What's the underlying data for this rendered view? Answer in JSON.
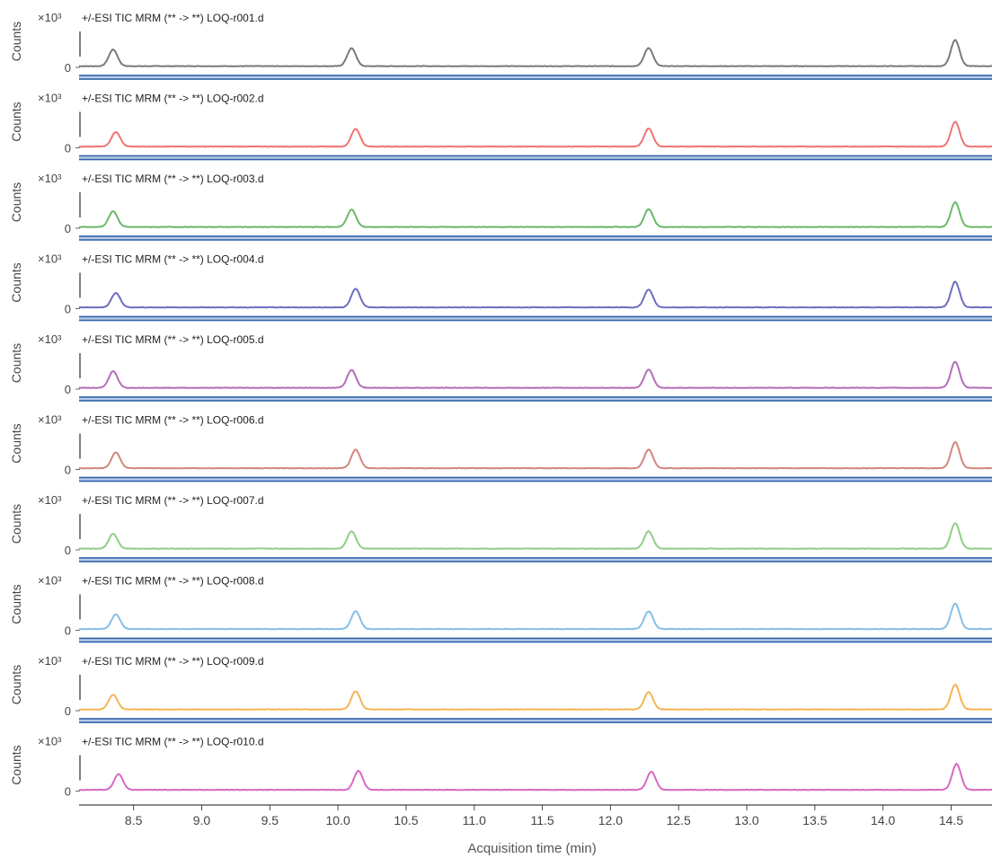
{
  "chart_data": {
    "type": "line",
    "xlabel": "Acquisition time (min)",
    "xlim": [
      8.1,
      14.8
    ],
    "xticks": [
      8.5,
      9.0,
      9.5,
      10.0,
      10.5,
      11.0,
      11.5,
      12.0,
      12.5,
      13.0,
      13.5,
      14.0,
      14.5
    ],
    "ylabel": "Counts",
    "y_multiplier": "×10³",
    "y_tick": "0",
    "ylim": [
      0,
      1
    ],
    "series": [
      {
        "name": "+/-ESI TIC MRM (** -> **) LOQ-r001.d",
        "color": "#7a7a7a",
        "peaks": [
          {
            "x": 8.35,
            "y": 0.4
          },
          {
            "x": 10.1,
            "y": 0.43
          },
          {
            "x": 12.28,
            "y": 0.44
          },
          {
            "x": 14.53,
            "y": 0.63
          }
        ]
      },
      {
        "name": "+/-ESI TIC MRM (** -> **) LOQ-r002.d",
        "color": "#f07373",
        "peaks": [
          {
            "x": 8.37,
            "y": 0.35
          },
          {
            "x": 10.13,
            "y": 0.43
          },
          {
            "x": 12.28,
            "y": 0.44
          },
          {
            "x": 14.53,
            "y": 0.6
          }
        ]
      },
      {
        "name": "+/-ESI TIC MRM (** -> **) LOQ-r003.d",
        "color": "#69b969",
        "peaks": [
          {
            "x": 8.35,
            "y": 0.38
          },
          {
            "x": 10.1,
            "y": 0.42
          },
          {
            "x": 12.28,
            "y": 0.43
          },
          {
            "x": 14.53,
            "y": 0.6
          }
        ]
      },
      {
        "name": "+/-ESI TIC MRM (** -> **) LOQ-r004.d",
        "color": "#6e6ebe",
        "peaks": [
          {
            "x": 8.37,
            "y": 0.35
          },
          {
            "x": 10.13,
            "y": 0.45
          },
          {
            "x": 12.28,
            "y": 0.43
          },
          {
            "x": 14.53,
            "y": 0.62
          }
        ]
      },
      {
        "name": "+/-ESI TIC MRM (** -> **) LOQ-r005.d",
        "color": "#b46eb9",
        "peaks": [
          {
            "x": 8.35,
            "y": 0.4
          },
          {
            "x": 10.1,
            "y": 0.43
          },
          {
            "x": 12.28,
            "y": 0.44
          },
          {
            "x": 14.53,
            "y": 0.63
          }
        ]
      },
      {
        "name": "+/-ESI TIC MRM (** -> **) LOQ-r006.d",
        "color": "#d2877d",
        "peaks": [
          {
            "x": 8.37,
            "y": 0.38
          },
          {
            "x": 10.13,
            "y": 0.45
          },
          {
            "x": 12.28,
            "y": 0.45
          },
          {
            "x": 14.53,
            "y": 0.63
          }
        ]
      },
      {
        "name": "+/-ESI TIC MRM (** -> **) LOQ-r007.d",
        "color": "#91cd87",
        "peaks": [
          {
            "x": 8.35,
            "y": 0.36
          },
          {
            "x": 10.1,
            "y": 0.42
          },
          {
            "x": 12.28,
            "y": 0.42
          },
          {
            "x": 14.53,
            "y": 0.62
          }
        ]
      },
      {
        "name": "+/-ESI TIC MRM (** -> **) LOQ-r008.d",
        "color": "#87bee6",
        "peaks": [
          {
            "x": 8.37,
            "y": 0.35
          },
          {
            "x": 10.13,
            "y": 0.43
          },
          {
            "x": 12.28,
            "y": 0.43
          },
          {
            "x": 14.53,
            "y": 0.62
          }
        ]
      },
      {
        "name": "+/-ESI TIC MRM (** -> **) LOQ-r009.d",
        "color": "#f5b455",
        "peaks": [
          {
            "x": 8.35,
            "y": 0.36
          },
          {
            "x": 10.13,
            "y": 0.44
          },
          {
            "x": 12.28,
            "y": 0.42
          },
          {
            "x": 14.53,
            "y": 0.6
          }
        ]
      },
      {
        "name": "+/-ESI TIC MRM (** -> **) LOQ-r010.d",
        "color": "#d769c3",
        "peaks": [
          {
            "x": 8.39,
            "y": 0.38
          },
          {
            "x": 10.15,
            "y": 0.46
          },
          {
            "x": 12.3,
            "y": 0.44
          },
          {
            "x": 14.54,
            "y": 0.63
          }
        ]
      }
    ]
  }
}
